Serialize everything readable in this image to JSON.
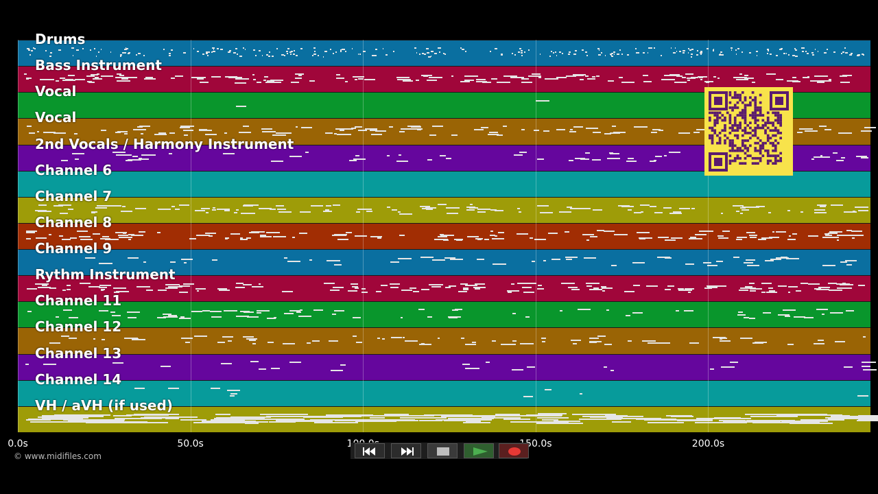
{
  "tracks": [
    {
      "name": "Drums",
      "color": "#0a6fa0"
    },
    {
      "name": "Bass Instrument",
      "color": "#a0063a"
    },
    {
      "name": "Vocal",
      "color": "#09962c"
    },
    {
      "name": "Vocal",
      "color": "#9a6405"
    },
    {
      "name": "2nd Vocals / Harmony Instrument",
      "color": "#65069d"
    },
    {
      "name": "Channel 6",
      "color": "#079b9b"
    },
    {
      "name": "Channel 7",
      "color": "#9e9c08"
    },
    {
      "name": "Channel 8",
      "color": "#a12d03"
    },
    {
      "name": "Channel 9",
      "color": "#0a6fa0"
    },
    {
      "name": "Rythm Instrument",
      "color": "#a0063a"
    },
    {
      "name": "Channel 11",
      "color": "#09962c"
    },
    {
      "name": "Channel 12",
      "color": "#9a6405"
    },
    {
      "name": "Channel 13",
      "color": "#65069d"
    },
    {
      "name": "Channel 14",
      "color": "#079b9b"
    },
    {
      "name": "VH / aVH (if used)",
      "color": "#9e9c08"
    }
  ],
  "timeline": {
    "max_seconds": 247,
    "ticks": [
      "0.0s",
      "50.0s",
      "100.0s",
      "150.0s",
      "200.0s"
    ],
    "tick_values": [
      0,
      50,
      100,
      150,
      200
    ]
  },
  "copyright": "© www.midifiles.com",
  "qr": {
    "color": "#f8e34b",
    "dark_color": "#5a1a6e"
  },
  "transport": {
    "buttons": [
      {
        "name": "rewind-button",
        "icon": "rewind-icon"
      },
      {
        "name": "fast-forward-button",
        "icon": "fast-forward-icon"
      },
      {
        "name": "stop-button",
        "icon": "stop-icon"
      },
      {
        "name": "play-button",
        "icon": "play-icon"
      },
      {
        "name": "record-button",
        "icon": "record-icon"
      }
    ],
    "play_color": "#4caf50",
    "record_color": "#e53935"
  }
}
